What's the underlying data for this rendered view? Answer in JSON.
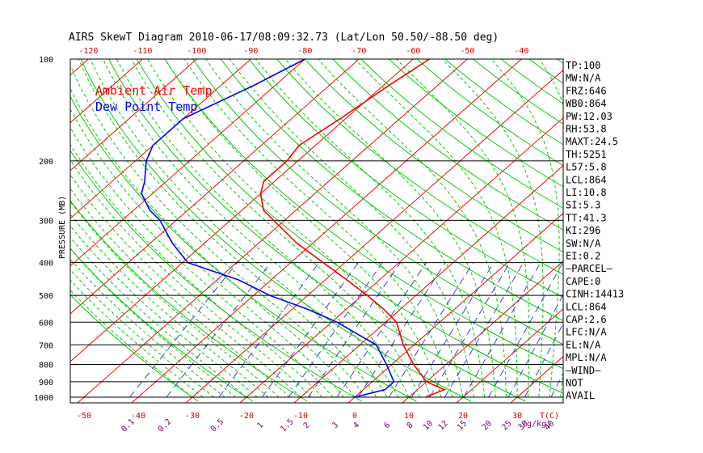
{
  "chart_data": {
    "type": "skewt",
    "title": "AIRS SkewT Diagram 2010-06-17/08:09:32.73 (Lat/Lon 50.50/-88.50 deg)",
    "ylabel": "PRESSURE (MB)",
    "y_scale": "log",
    "y_ticks": [
      100,
      200,
      300,
      400,
      500,
      600,
      700,
      800,
      900,
      1000
    ],
    "top_temp_ticks": [
      -120,
      -110,
      -100,
      -90,
      -80,
      -70,
      -60,
      -50,
      -40
    ],
    "bottom_temp_ticks": [
      -50,
      -40,
      -30,
      -20,
      -10,
      0,
      10,
      20,
      30
    ],
    "bottom_temp_unit": "T(C)",
    "mixing_ratio_ticks": [
      "0.1",
      "0.2",
      "0.5",
      "1",
      "1.5",
      "2",
      "3",
      "4",
      "6",
      "8",
      "10",
      "12",
      "15",
      "20",
      "25",
      "30",
      "40"
    ],
    "mixing_ratio_unit": "(g/kg)",
    "legend": [
      {
        "label": "Ambient Air Temp",
        "color": "#ff0000"
      },
      {
        "label": "Dew Point Temp",
        "color": "#0000ff"
      }
    ],
    "series": [
      {
        "name": "Ambient Air Temp",
        "color": "#ff0000",
        "points": [
          {
            "p": 100,
            "t": -57
          },
          {
            "p": 120,
            "t": -59
          },
          {
            "p": 150,
            "t": -61
          },
          {
            "p": 180,
            "t": -63
          },
          {
            "p": 200,
            "t": -62
          },
          {
            "p": 230,
            "t": -62
          },
          {
            "p": 250,
            "t": -60
          },
          {
            "p": 280,
            "t": -56
          },
          {
            "p": 300,
            "t": -52
          },
          {
            "p": 350,
            "t": -43
          },
          {
            "p": 400,
            "t": -34
          },
          {
            "p": 450,
            "t": -26
          },
          {
            "p": 500,
            "t": -19
          },
          {
            "p": 550,
            "t": -13
          },
          {
            "p": 600,
            "t": -8
          },
          {
            "p": 700,
            "t": -2
          },
          {
            "p": 800,
            "t": 4
          },
          {
            "p": 900,
            "t": 10
          },
          {
            "p": 950,
            "t": 15
          },
          {
            "p": 1000,
            "t": 13
          }
        ]
      },
      {
        "name": "Dew Point Temp",
        "color": "#0000ff",
        "points": [
          {
            "p": 100,
            "t": -80
          },
          {
            "p": 120,
            "t": -84
          },
          {
            "p": 150,
            "t": -90
          },
          {
            "p": 180,
            "t": -90
          },
          {
            "p": 200,
            "t": -88
          },
          {
            "p": 230,
            "t": -84
          },
          {
            "p": 250,
            "t": -82
          },
          {
            "p": 280,
            "t": -77
          },
          {
            "p": 300,
            "t": -73
          },
          {
            "p": 350,
            "t": -66
          },
          {
            "p": 400,
            "t": -59
          },
          {
            "p": 450,
            "t": -46
          },
          {
            "p": 500,
            "t": -37
          },
          {
            "p": 550,
            "t": -27
          },
          {
            "p": 600,
            "t": -19
          },
          {
            "p": 700,
            "t": -7
          },
          {
            "p": 800,
            "t": -1
          },
          {
            "p": 900,
            "t": 4
          },
          {
            "p": 950,
            "t": 4
          },
          {
            "p": 1000,
            "t": 0
          }
        ]
      }
    ],
    "grid": true,
    "colors": {
      "isotherm": "#ff0000",
      "dry_adiabat": "#00cc00",
      "moist_adiabat": "#00cc00",
      "mixing_ratio": "#4040cc",
      "tick_label": "#cc0000",
      "mixing_label": "#7a006e"
    }
  },
  "stats": [
    "TP:100",
    "MW:N/A",
    "FRZ:646",
    "WB0:864",
    "PW:12.03",
    "RH:53.8",
    "MAXT:24.5",
    "TH:5251",
    "L57:5.8",
    "LCL:864",
    "LI:10.8",
    "SI:5.3",
    "TT:41.3",
    "KI:296",
    "SW:N/A",
    "EI:0.2",
    "—PARCEL—",
    "CAPE:0",
    "CINH:14413",
    "LCL:864",
    "CAP:2.6",
    "LFC:N/A",
    "EL:N/A",
    "MPL:N/A",
    "—WIND—",
    "NOT",
    "AVAIL"
  ]
}
